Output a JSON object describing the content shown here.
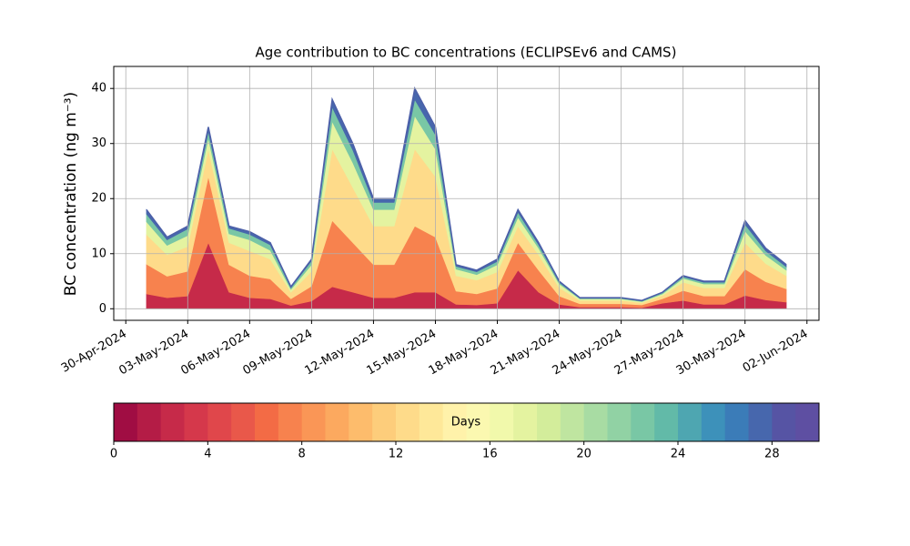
{
  "chart_data": {
    "type": "stacked_area",
    "title": "Age contribution to BC concentrations (ECLIPSEv6 and CAMS)",
    "y_label": "BC concentration (ng m⁻³)",
    "x": [
      "2024-05-01",
      "2024-05-02",
      "2024-05-03",
      "2024-05-04",
      "2024-05-05",
      "2024-05-06",
      "2024-05-07",
      "2024-05-08",
      "2024-05-09",
      "2024-05-10",
      "2024-05-11",
      "2024-05-12",
      "2024-05-13",
      "2024-05-14",
      "2024-05-15",
      "2024-05-16",
      "2024-05-17",
      "2024-05-18",
      "2024-05-19",
      "2024-05-20",
      "2024-05-21",
      "2024-05-22",
      "2024-05-23",
      "2024-05-24",
      "2024-05-25",
      "2024-05-26",
      "2024-05-27",
      "2024-05-28",
      "2024-05-29",
      "2024-05-30",
      "2024-05-31",
      "2024-06-01"
    ],
    "series": [
      {
        "color": "#c62a49",
        "values": [
          2.7,
          2,
          2.3,
          12,
          3,
          2,
          1.8,
          0.6,
          1.4,
          4,
          3,
          2,
          2,
          3,
          3,
          0.8,
          0.7,
          1,
          7,
          3,
          0.8,
          0.3,
          0.3,
          0.3,
          0.2,
          1,
          1.5,
          0.8,
          0.8,
          2.4,
          1.6,
          1.2
        ]
      },
      {
        "color": "#f7824e",
        "values": [
          5.4,
          3.9,
          4.5,
          12,
          5,
          4,
          3.6,
          1.2,
          2.7,
          12,
          9,
          6,
          6,
          12,
          10,
          2.4,
          2,
          2.7,
          5,
          4,
          1.5,
          0.6,
          0.6,
          0.6,
          0.5,
          0.8,
          1.8,
          1.5,
          1.5,
          4.8,
          3.3,
          2.4
        ]
      },
      {
        "color": "#fedb8a",
        "values": [
          5.4,
          3.9,
          4.5,
          5,
          4,
          4.5,
          3.6,
          1.2,
          2.7,
          13,
          10,
          7,
          7,
          14,
          11,
          2.8,
          2.5,
          3,
          3,
          2.8,
          1.5,
          0.6,
          0.6,
          0.6,
          0.4,
          0.6,
          1.5,
          1.5,
          1.5,
          4.8,
          3.3,
          2.4
        ]
      },
      {
        "color": "#e4f3a0",
        "values": [
          2.3,
          1.7,
          2,
          2,
          1.6,
          2,
          1.6,
          0.5,
          1.2,
          5,
          4.5,
          3,
          3,
          6,
          5,
          1.2,
          1,
          1.3,
          1.6,
          1.2,
          0.7,
          0.3,
          0.3,
          0.3,
          0.2,
          0.3,
          0.7,
          0.7,
          0.7,
          2.1,
          1.5,
          1
        ]
      },
      {
        "color": "#79c7a5",
        "values": [
          1.4,
          1,
          1.2,
          1.2,
          1,
          1,
          1,
          0.3,
          0.7,
          2.6,
          2.3,
          1.3,
          1.3,
          3,
          2.6,
          0.5,
          0.5,
          0.6,
          0.9,
          0.6,
          0.3,
          0.1,
          0.1,
          0.1,
          0.1,
          0.2,
          0.3,
          0.3,
          0.3,
          1.2,
          0.8,
          0.6
        ]
      },
      {
        "color": "#4767ad",
        "values": [
          0.8,
          0.5,
          0.5,
          0.8,
          0.4,
          0.5,
          0.4,
          0.2,
          0.3,
          1.4,
          1.2,
          0.7,
          0.7,
          2,
          1.4,
          0.3,
          0.3,
          0.4,
          0.5,
          0.4,
          0.2,
          0.1,
          0.1,
          0.1,
          0.1,
          0.1,
          0.2,
          0.2,
          0.2,
          0.7,
          0.5,
          0.4
        ]
      }
    ],
    "xlim": [
      "2024-04-29T10:00",
      "2024-06-02T14:00"
    ],
    "xticks": [
      {
        "value": "2024-04-30",
        "label": "30-Apr-2024"
      },
      {
        "value": "2024-05-03",
        "label": "03-May-2024"
      },
      {
        "value": "2024-05-06",
        "label": "06-May-2024"
      },
      {
        "value": "2024-05-09",
        "label": "09-May-2024"
      },
      {
        "value": "2024-05-12",
        "label": "12-May-2024"
      },
      {
        "value": "2024-05-15",
        "label": "15-May-2024"
      },
      {
        "value": "2024-05-18",
        "label": "18-May-2024"
      },
      {
        "value": "2024-05-21",
        "label": "21-May-2024"
      },
      {
        "value": "2024-05-24",
        "label": "24-May-2024"
      },
      {
        "value": "2024-05-27",
        "label": "27-May-2024"
      },
      {
        "value": "2024-05-30",
        "label": "30-May-2024"
      },
      {
        "value": "2024-06-02",
        "label": "02-Jun-2024"
      }
    ],
    "ylim": [
      -2.1,
      44
    ],
    "yticks": [
      0,
      10,
      20,
      30,
      40
    ],
    "grid": true,
    "colorbar": {
      "label": "Days",
      "lim": [
        0,
        30
      ],
      "ticks": [
        0,
        4,
        8,
        12,
        16,
        20,
        24,
        28
      ],
      "colors": [
        "#a00d43",
        "#b41c46",
        "#c62a49",
        "#d5384b",
        "#e0474b",
        "#e9584a",
        "#f36b45",
        "#f7824e",
        "#fa9656",
        "#fca95f",
        "#fdbc6c",
        "#fdcd7b",
        "#fedb8a",
        "#fee899",
        "#fff2aa",
        "#fbf8b0",
        "#f1f9ab",
        "#e4f3a0",
        "#d3ed9b",
        "#bfe5a0",
        "#a8dca3",
        "#91d2a4",
        "#79c7a5",
        "#62baa8",
        "#4ea6b1",
        "#3d91ba",
        "#3b7cb8",
        "#4767ad",
        "#5654a4",
        "#5e4fa2"
      ]
    }
  }
}
